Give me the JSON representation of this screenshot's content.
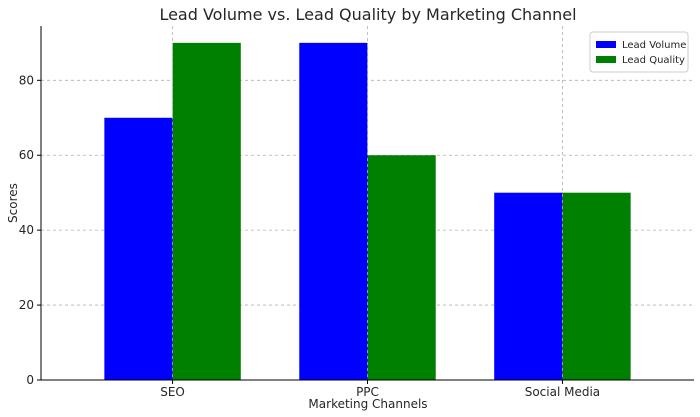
{
  "chart_data": {
    "type": "bar",
    "title": "Lead Volume vs. Lead Quality by Marketing Channel",
    "xlabel": "Marketing Channels",
    "ylabel": "Scores",
    "categories": [
      "SEO",
      "PPC",
      "Social Media"
    ],
    "series": [
      {
        "name": "Lead Volume",
        "values": [
          70,
          90,
          50
        ],
        "color": "#0000ff"
      },
      {
        "name": "Lead Quality",
        "values": [
          90,
          60,
          50
        ],
        "color": "#008000"
      }
    ],
    "ylim": [
      0,
      94.5
    ],
    "yticks": [
      0,
      20,
      40,
      60,
      80
    ],
    "grid": true,
    "legend": "top-right"
  }
}
